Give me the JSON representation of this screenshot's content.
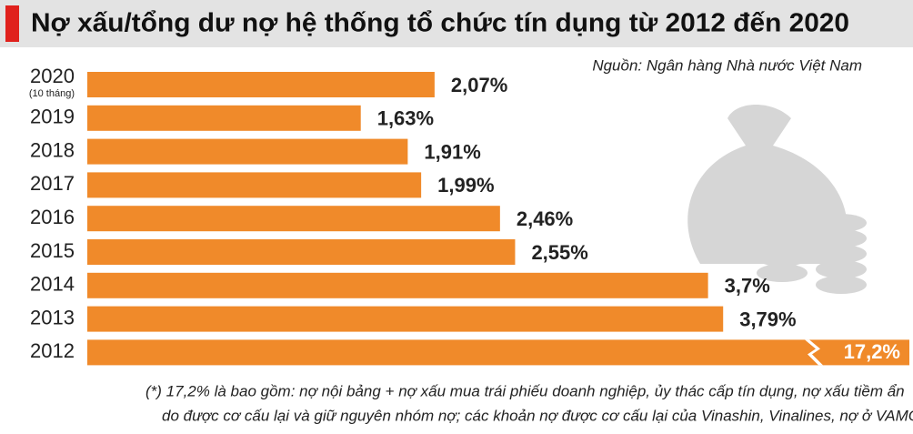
{
  "chart_data": {
    "type": "bar",
    "orientation": "horizontal",
    "title": "Nợ xấu/tổng dư nợ hệ thống tổ chức tín dụng từ 2012 đến 2020",
    "source": "Nguồn: Ngân hàng Nhà nước Việt Nam",
    "categories": [
      "2020",
      "2019",
      "2018",
      "2017",
      "2016",
      "2015",
      "2014",
      "2013",
      "2012"
    ],
    "first_category_note": "(10 tháng)",
    "values": [
      2.07,
      1.63,
      1.91,
      1.99,
      2.46,
      2.55,
      3.7,
      3.79,
      17.2
    ],
    "value_labels": [
      "2,07%",
      "1,63%",
      "1,91%",
      "1,99%",
      "2,46%",
      "2,55%",
      "3,7%",
      "3,79%",
      "17,2%"
    ],
    "color": "#f08a2a",
    "xlim": [
      0,
      4.9
    ],
    "footnote": [
      "(*) 17,2% là bao gồm: nợ nội bảng + nợ xấu mua trái phiếu doanh nghiệp, ủy thác cấp tín dụng,  nợ xấu tiềm ẩn",
      "do được cơ cấu lại và giữ nguyên nhóm nợ; các khoản nợ được cơ cấu lại của Vinashin, Vinalines, nợ ở VAMC."
    ]
  }
}
